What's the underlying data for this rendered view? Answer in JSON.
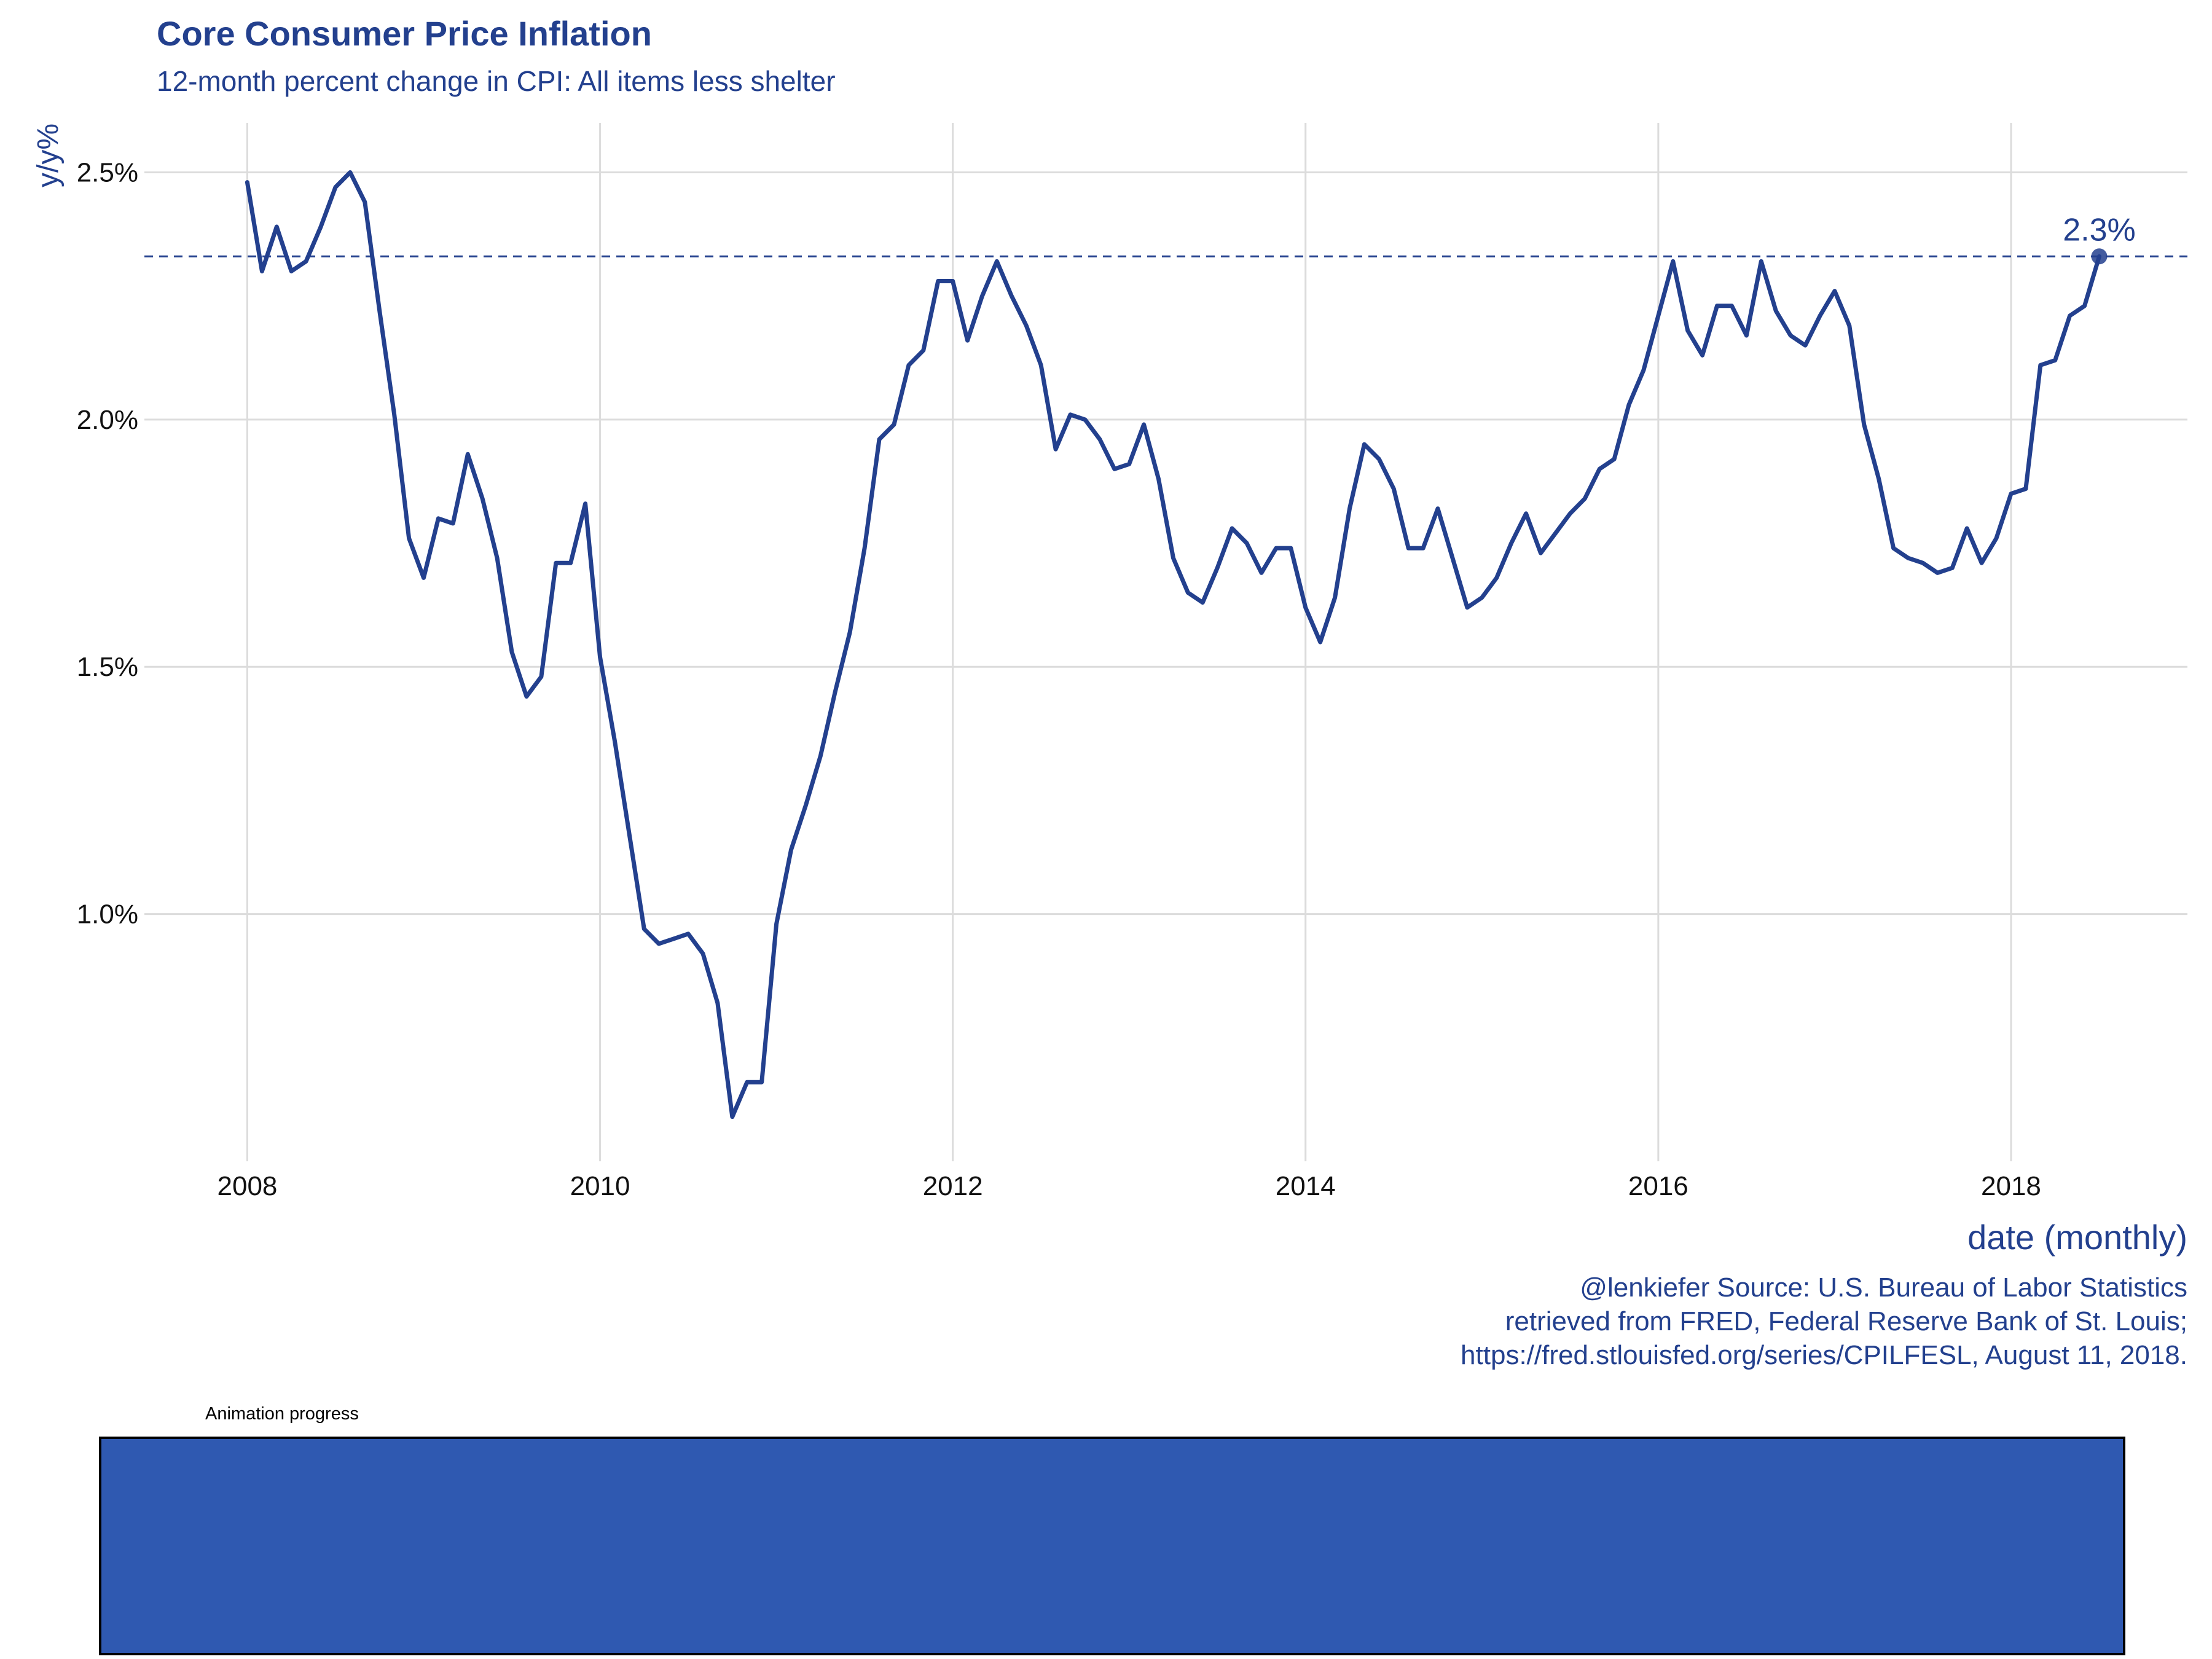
{
  "colors": {
    "series": "#23408E",
    "grid": "#DCDCDC",
    "text": "#23408E",
    "axis_text": "#111111",
    "progress_fill": "#2F59B1",
    "progress_border": "#000000"
  },
  "progress": {
    "label": "Animation progress",
    "value": 1.0
  },
  "chart_data": {
    "type": "line",
    "title": "Core Consumer Price Inflation",
    "subtitle": "12-month percent change in CPI: All items less shelter",
    "xlabel": "date (monthly)",
    "ylabel": "y/y%",
    "caption": [
      "@lenkiefer Source: U.S. Bureau of Labor Statistics",
      "retrieved from FRED, Federal Reserve Bank of St. Louis;",
      "https://fred.stlouisfed.org/series/CPILFESL, August 11, 2018."
    ],
    "x_ticks": [
      "2008",
      "2010",
      "2012",
      "2014",
      "2016",
      "2018"
    ],
    "y_ticks": [
      "1.0%",
      "1.5%",
      "2.0%",
      "2.5%"
    ],
    "xlim": [
      "2007-06",
      "2019-01"
    ],
    "ylim": [
      0.5,
      2.6
    ],
    "grid": true,
    "legend": "none",
    "reference_line": {
      "value": 2.33,
      "style": "dashed"
    },
    "endpoint_label": "2.3%",
    "series": [
      {
        "x": [
          "2008-01",
          "2008-02",
          "2008-03",
          "2008-04",
          "2008-05",
          "2008-06",
          "2008-07",
          "2008-08",
          "2008-09",
          "2008-10",
          "2008-11",
          "2008-12",
          "2009-01",
          "2009-02",
          "2009-03",
          "2009-04",
          "2009-05",
          "2009-06",
          "2009-07",
          "2009-08",
          "2009-09",
          "2009-10",
          "2009-11",
          "2009-12",
          "2010-01",
          "2010-02",
          "2010-03",
          "2010-04",
          "2010-05",
          "2010-06",
          "2010-07",
          "2010-08",
          "2010-09",
          "2010-10",
          "2010-11",
          "2010-12",
          "2011-01",
          "2011-02",
          "2011-03",
          "2011-04",
          "2011-05",
          "2011-06",
          "2011-07",
          "2011-08",
          "2011-09",
          "2011-10",
          "2011-11",
          "2011-12",
          "2012-01",
          "2012-02",
          "2012-03",
          "2012-04",
          "2012-05",
          "2012-06",
          "2012-07",
          "2012-08",
          "2012-09",
          "2012-10",
          "2012-11",
          "2012-12",
          "2013-01",
          "2013-02",
          "2013-03",
          "2013-04",
          "2013-05",
          "2013-06",
          "2013-07",
          "2013-08",
          "2013-09",
          "2013-10",
          "2013-11",
          "2013-12",
          "2014-01",
          "2014-02",
          "2014-03",
          "2014-04",
          "2014-05",
          "2014-06",
          "2014-07",
          "2014-08",
          "2014-09",
          "2014-10",
          "2014-11",
          "2014-12",
          "2015-01",
          "2015-02",
          "2015-03",
          "2015-04",
          "2015-05",
          "2015-06",
          "2015-07",
          "2015-08",
          "2015-09",
          "2015-10",
          "2015-11",
          "2015-12",
          "2016-01",
          "2016-02",
          "2016-03",
          "2016-04",
          "2016-05",
          "2016-06",
          "2016-07",
          "2016-08",
          "2016-09",
          "2016-10",
          "2016-11",
          "2016-12",
          "2017-01",
          "2017-02",
          "2017-03",
          "2017-04",
          "2017-05",
          "2017-06",
          "2017-07",
          "2017-08",
          "2017-09",
          "2017-10",
          "2017-11",
          "2017-12",
          "2018-01",
          "2018-02",
          "2018-03",
          "2018-04",
          "2018-05",
          "2018-06",
          "2018-07"
        ],
        "values": [
          2.48,
          2.3,
          2.39,
          2.3,
          2.32,
          2.39,
          2.47,
          2.5,
          2.44,
          2.22,
          2.01,
          1.76,
          1.68,
          1.8,
          1.79,
          1.93,
          1.84,
          1.72,
          1.53,
          1.44,
          1.48,
          1.71,
          1.71,
          1.83,
          1.52,
          1.35,
          1.16,
          0.97,
          0.94,
          0.95,
          0.96,
          0.92,
          0.82,
          0.59,
          0.66,
          0.66,
          0.98,
          1.13,
          1.22,
          1.32,
          1.45,
          1.57,
          1.74,
          1.96,
          1.99,
          2.11,
          2.14,
          2.28,
          2.28,
          2.16,
          2.25,
          2.32,
          2.25,
          2.19,
          2.11,
          1.94,
          2.01,
          2.0,
          1.96,
          1.9,
          1.91,
          1.99,
          1.88,
          1.72,
          1.65,
          1.63,
          1.7,
          1.78,
          1.75,
          1.69,
          1.74,
          1.74,
          1.62,
          1.55,
          1.64,
          1.82,
          1.95,
          1.92,
          1.86,
          1.74,
          1.74,
          1.82,
          1.72,
          1.62,
          1.64,
          1.68,
          1.75,
          1.81,
          1.73,
          1.77,
          1.81,
          1.84,
          1.9,
          1.92,
          2.03,
          2.1,
          2.21,
          2.32,
          2.18,
          2.13,
          2.23,
          2.23,
          2.17,
          2.32,
          2.22,
          2.17,
          2.15,
          2.21,
          2.26,
          2.19,
          1.99,
          1.88,
          1.74,
          1.72,
          1.71,
          1.69,
          1.7,
          1.78,
          1.71,
          1.76,
          1.85,
          1.86,
          2.11,
          2.12,
          2.21,
          2.23,
          2.33
        ]
      }
    ]
  }
}
